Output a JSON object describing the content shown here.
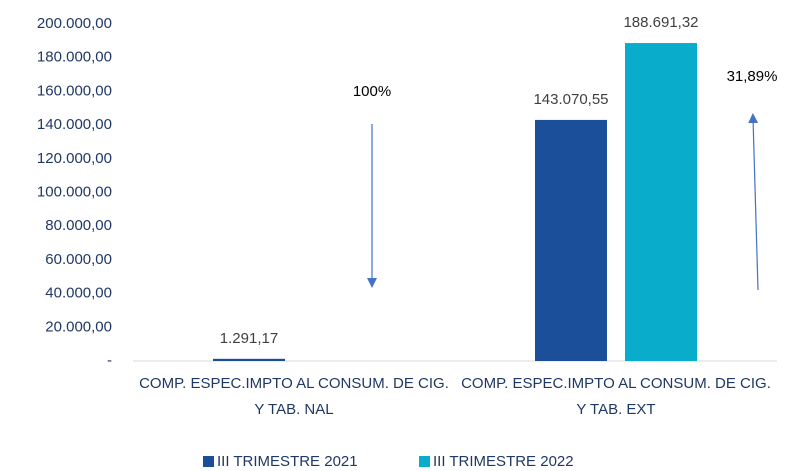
{
  "chart_data": {
    "type": "bar",
    "categories": [
      "COMP. ESPEC.IMPTO AL CONSUM. DE CIG. Y TAB. NAL",
      "COMP. ESPEC.IMPTO AL CONSUM. DE CIG. Y TAB. EXT"
    ],
    "series": [
      {
        "name": "III TRIMESTRE 2021",
        "color": "#1b4f9a",
        "values": [
          1291.17,
          143070.55
        ],
        "value_labels": [
          "1.291,17",
          "143.070,55"
        ]
      },
      {
        "name": "III TRIMESTRE 2022",
        "color": "#0aaccc",
        "values": [
          0,
          188691.32
        ],
        "value_labels": [
          null,
          "188.691,32"
        ]
      }
    ],
    "ylim": [
      0,
      200000
    ],
    "yticks": [
      {
        "value": 0,
        "label": "-"
      },
      {
        "value": 20000,
        "label": "20.000,00"
      },
      {
        "value": 40000,
        "label": "40.000,00"
      },
      {
        "value": 60000,
        "label": "60.000,00"
      },
      {
        "value": 80000,
        "label": "80.000,00"
      },
      {
        "value": 100000,
        "label": "100.000,00"
      },
      {
        "value": 120000,
        "label": "120.000,00"
      },
      {
        "value": 140000,
        "label": "140.000,00"
      },
      {
        "value": 160000,
        "label": "160.000,00"
      },
      {
        "value": 180000,
        "label": "180.000,00"
      },
      {
        "value": 200000,
        "label": "200.000,00"
      }
    ],
    "annotations": [
      "100%",
      "31,89%"
    ],
    "legend": "bottom",
    "grid": false
  }
}
